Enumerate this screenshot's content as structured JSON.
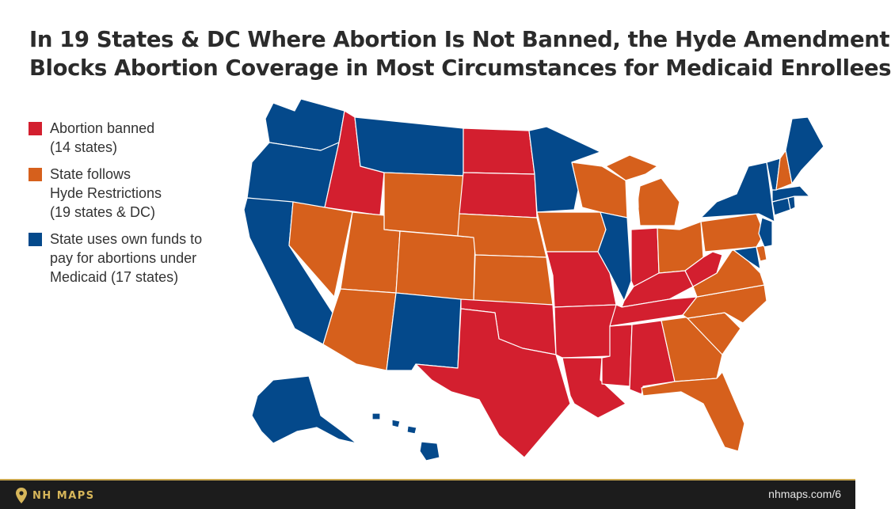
{
  "title": {
    "line1": "In 19 States & DC Where Abortion Is Not Banned, the Hyde Amendment",
    "line2": "Blocks Abortion Coverage in Most Circumstances for Medicaid Enrollees"
  },
  "colors": {
    "banned": "#d31f2f",
    "hyde": "#d6601c",
    "own_funds": "#04498b",
    "border": "#ffffff",
    "footer_bg": "#1c1c1c",
    "brand_gold": "#d7b65a"
  },
  "legend": [
    {
      "category": "banned",
      "lines": [
        "Abortion banned",
        "(14 states)"
      ]
    },
    {
      "category": "hyde",
      "lines": [
        "State follows",
        "Hyde Restrictions",
        "(19 states & DC)"
      ]
    },
    {
      "category": "own_funds",
      "lines": [
        "State uses own funds to",
        "pay for abortions under",
        "Medicaid (17 states)"
      ]
    }
  ],
  "footer": {
    "brand": "NH MAPS",
    "brand_icon": "map-pin-icon",
    "url": "nhmaps.com/6"
  }
}
